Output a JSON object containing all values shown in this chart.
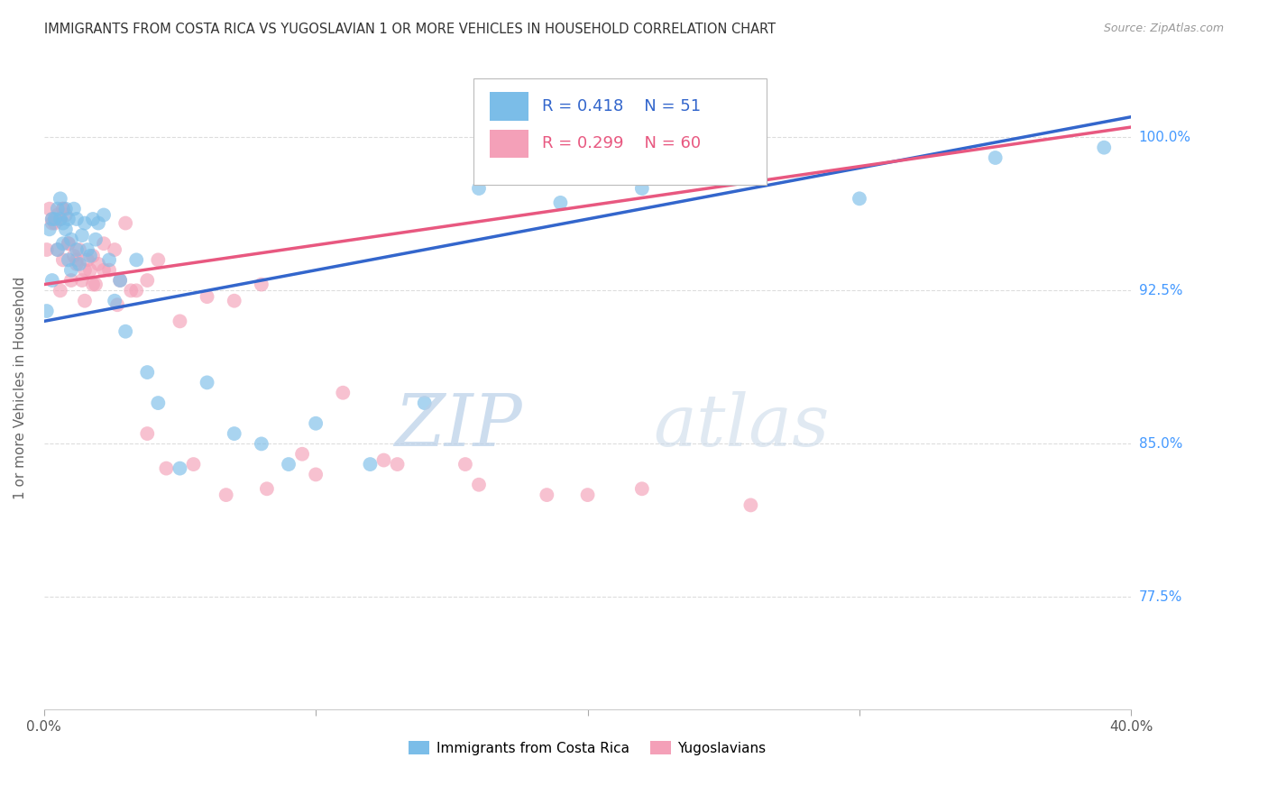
{
  "title": "IMMIGRANTS FROM COSTA RICA VS YUGOSLAVIAN 1 OR MORE VEHICLES IN HOUSEHOLD CORRELATION CHART",
  "source": "Source: ZipAtlas.com",
  "ylabel": "1 or more Vehicles in Household",
  "ytick_labels": [
    "100.0%",
    "92.5%",
    "85.0%",
    "77.5%"
  ],
  "ytick_values": [
    1.0,
    0.925,
    0.85,
    0.775
  ],
  "xmin": 0.0,
  "xmax": 0.4,
  "ymin": 0.72,
  "ymax": 1.035,
  "legend_blue_r": "R = 0.418",
  "legend_blue_n": "N = 51",
  "legend_pink_r": "R = 0.299",
  "legend_pink_n": "N = 60",
  "label_blue": "Immigrants from Costa Rica",
  "label_pink": "Yugoslavians",
  "blue_color": "#7bbde8",
  "pink_color": "#f4a0b8",
  "blue_line_color": "#3366cc",
  "pink_line_color": "#e85880",
  "watermark_zip": "ZIP",
  "watermark_atlas": "atlas",
  "watermark_color": "#d0e4f7",
  "background_color": "#ffffff",
  "title_color": "#333333",
  "source_color": "#999999",
  "yaxis_label_color": "#4499ff",
  "grid_color": "#dddddd",
  "blue_line_x0": 0.0,
  "blue_line_y0": 0.91,
  "blue_line_x1": 0.4,
  "blue_line_y1": 1.01,
  "pink_line_x0": 0.0,
  "pink_line_y0": 0.928,
  "pink_line_x1": 0.4,
  "pink_line_y1": 1.005,
  "blue_x": [
    0.001,
    0.002,
    0.003,
    0.003,
    0.004,
    0.005,
    0.005,
    0.006,
    0.006,
    0.007,
    0.007,
    0.008,
    0.008,
    0.009,
    0.009,
    0.01,
    0.01,
    0.011,
    0.012,
    0.012,
    0.013,
    0.014,
    0.015,
    0.016,
    0.017,
    0.018,
    0.019,
    0.02,
    0.022,
    0.024,
    0.026,
    0.028,
    0.03,
    0.034,
    0.038,
    0.042,
    0.05,
    0.06,
    0.07,
    0.08,
    0.09,
    0.1,
    0.12,
    0.14,
    0.16,
    0.19,
    0.22,
    0.26,
    0.3,
    0.35,
    0.39
  ],
  "blue_y": [
    0.915,
    0.955,
    0.96,
    0.93,
    0.96,
    0.965,
    0.945,
    0.96,
    0.97,
    0.958,
    0.948,
    0.965,
    0.955,
    0.94,
    0.96,
    0.95,
    0.935,
    0.965,
    0.945,
    0.96,
    0.938,
    0.952,
    0.958,
    0.945,
    0.942,
    0.96,
    0.95,
    0.958,
    0.962,
    0.94,
    0.92,
    0.93,
    0.905,
    0.94,
    0.885,
    0.87,
    0.838,
    0.88,
    0.855,
    0.85,
    0.84,
    0.86,
    0.84,
    0.87,
    0.975,
    0.968,
    0.975,
    0.985,
    0.97,
    0.99,
    0.995
  ],
  "pink_x": [
    0.001,
    0.002,
    0.003,
    0.004,
    0.005,
    0.006,
    0.006,
    0.007,
    0.007,
    0.008,
    0.009,
    0.01,
    0.011,
    0.012,
    0.013,
    0.014,
    0.015,
    0.016,
    0.017,
    0.018,
    0.019,
    0.02,
    0.022,
    0.024,
    0.026,
    0.028,
    0.03,
    0.034,
    0.038,
    0.042,
    0.05,
    0.06,
    0.07,
    0.08,
    0.095,
    0.11,
    0.13,
    0.155,
    0.185,
    0.22,
    0.003,
    0.005,
    0.007,
    0.009,
    0.012,
    0.015,
    0.018,
    0.022,
    0.027,
    0.032,
    0.038,
    0.045,
    0.055,
    0.067,
    0.082,
    0.1,
    0.125,
    0.16,
    0.2,
    0.26
  ],
  "pink_y": [
    0.945,
    0.965,
    0.96,
    0.958,
    0.945,
    0.96,
    0.925,
    0.965,
    0.94,
    0.962,
    0.948,
    0.93,
    0.942,
    0.938,
    0.945,
    0.93,
    0.92,
    0.94,
    0.935,
    0.942,
    0.928,
    0.938,
    0.948,
    0.935,
    0.945,
    0.93,
    0.958,
    0.925,
    0.93,
    0.94,
    0.91,
    0.922,
    0.92,
    0.928,
    0.845,
    0.875,
    0.84,
    0.84,
    0.825,
    0.828,
    0.958,
    0.962,
    0.965,
    0.948,
    0.94,
    0.935,
    0.928,
    0.935,
    0.918,
    0.925,
    0.855,
    0.838,
    0.84,
    0.825,
    0.828,
    0.835,
    0.842,
    0.83,
    0.825,
    0.82
  ]
}
